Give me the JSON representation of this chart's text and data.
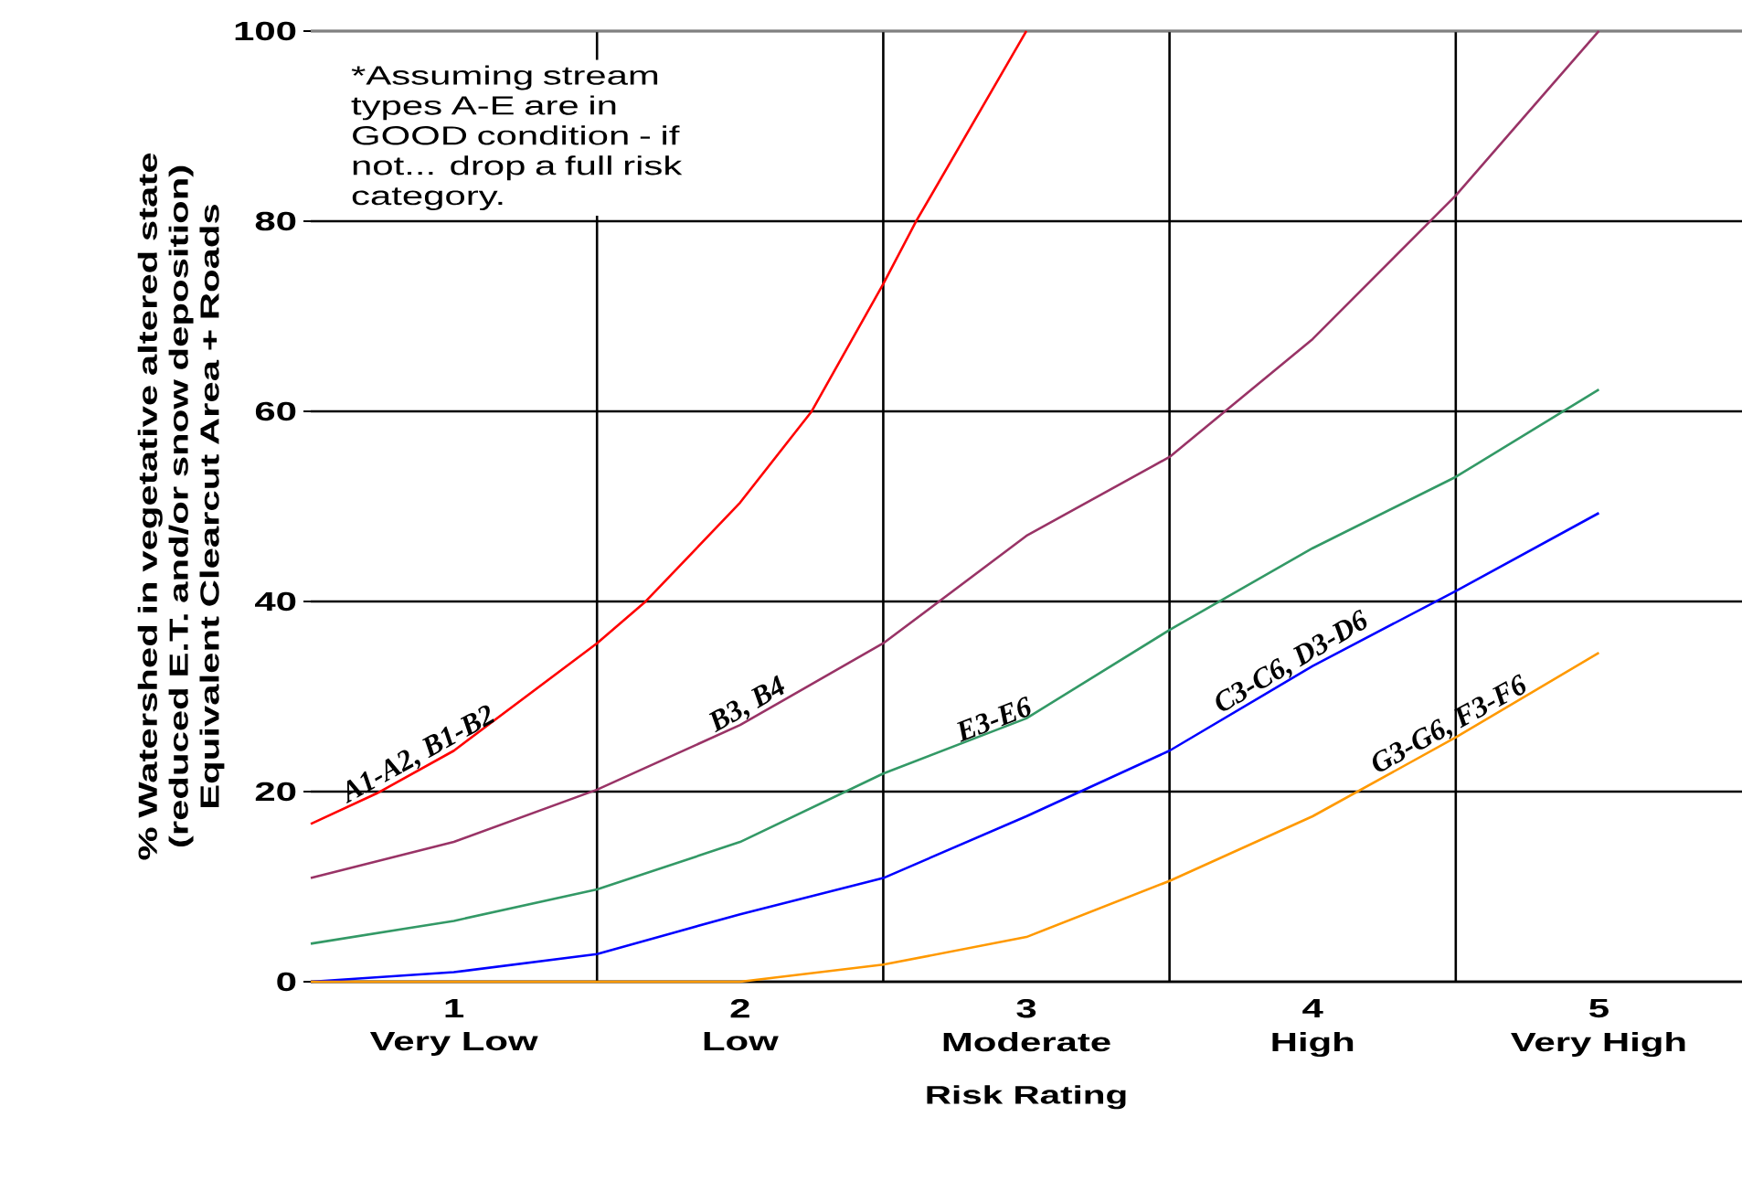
{
  "chart_data": {
    "type": "line",
    "xlabel": "Risk Rating",
    "ylabel": "% Watershed in vegetative altered state (reduced E.T. and/or snow deposition) Equivalent Clearcut Area + Roads",
    "x": [
      0.5,
      1,
      1.5,
      2,
      2.5,
      3,
      3.5,
      4,
      4.5,
      5
    ],
    "series": [
      {
        "name": "A1-A2, B1-B2",
        "color": "#ff0000",
        "x": [
          0.5,
          0.73,
          1,
          1.5,
          1.67,
          2,
          2.25,
          2.5,
          2.615,
          3
        ],
        "values": [
          16.6,
          19.8,
          24.3,
          35.6,
          40,
          50.4,
          60,
          73.4,
          80,
          100
        ]
      },
      {
        "name": "B3, B4",
        "color": "#993366",
        "values": [
          10.9,
          14.7,
          20.2,
          27,
          35.6,
          46.9,
          55.2,
          67.6,
          82.7,
          100
        ]
      },
      {
        "name": "E3-E6",
        "color": "#339966",
        "values": [
          4.0,
          6.4,
          9.7,
          14.7,
          21.9,
          27.7,
          37,
          45.6,
          53.1,
          62.3
        ]
      },
      {
        "name": "C3-C6, D3-D6",
        "color": "#0000ff",
        "values": [
          0,
          1.0,
          2.9,
          7.1,
          10.9,
          17.4,
          24.3,
          33.2,
          41.1,
          49.3
        ]
      },
      {
        "name": "G3-G6, F3-F6",
        "color": "#ff9900",
        "values": [
          0,
          0,
          0,
          0,
          1.8,
          4.7,
          10.6,
          17.4,
          25.7,
          34.6
        ]
      }
    ],
    "xlim": [
      0.5,
      5.5
    ],
    "xticks": [
      1,
      2,
      3,
      4,
      5
    ],
    "ylim": [
      0,
      100
    ],
    "yticks": [
      0,
      20,
      40,
      60,
      80,
      100
    ],
    "grid": "y",
    "ref_lines": [
      {
        "axis": "x",
        "value": 1.5,
        "color": "#000000"
      },
      {
        "axis": "x",
        "value": 2.5,
        "color": "#000000"
      },
      {
        "axis": "x",
        "value": 3.5,
        "color": "#000000"
      },
      {
        "axis": "x",
        "value": 4.5,
        "color": "#000000"
      }
    ],
    "annotations": [
      "*Assuming stream types A-E are in GOOD condition - if not... drop a full risk category.",
      "Very Low",
      "Low",
      "Moderate",
      "High",
      "Very High"
    ],
    "line_style": "solid",
    "marker": "none"
  }
}
